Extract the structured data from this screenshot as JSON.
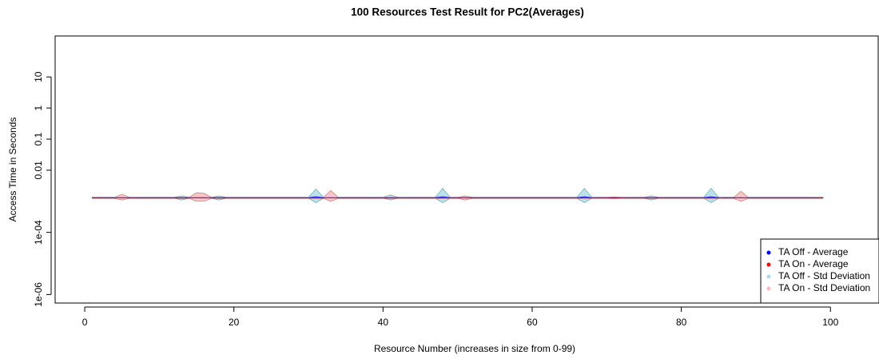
{
  "chart_data": {
    "type": "band-line",
    "title": "100 Resources Test Result for PC2(Averages)",
    "x_label": "Resource Number (increases in size from 0-99)",
    "y_label": "Access Time in Seconds",
    "log_y": true,
    "legend_position": "bottomright",
    "xlim": [
      -3.97,
      106.4
    ],
    "xticks": [
      0,
      20,
      40,
      60,
      80,
      100
    ],
    "ylim": [
      5.33e-07,
      208
    ],
    "yticks": [
      10,
      1,
      0.1,
      0.01,
      {
        "value": 0.0001,
        "label": "1e-04"
      },
      {
        "value": 1e-06,
        "label": "1e-06"
      }
    ],
    "x": [
      1,
      2,
      3,
      4,
      5,
      6,
      7,
      8,
      9,
      10,
      11,
      12,
      13,
      14,
      15,
      16,
      17,
      18,
      19,
      20,
      21,
      22,
      23,
      24,
      25,
      26,
      27,
      28,
      29,
      30,
      31,
      32,
      33,
      34,
      35,
      36,
      37,
      38,
      39,
      40,
      41,
      42,
      43,
      44,
      45,
      46,
      47,
      48,
      49,
      50,
      51,
      52,
      53,
      54,
      55,
      56,
      57,
      58,
      59,
      60,
      61,
      62,
      63,
      64,
      65,
      66,
      67,
      68,
      69,
      70,
      71,
      72,
      73,
      74,
      75,
      76,
      77,
      78,
      79,
      80,
      81,
      82,
      83,
      84,
      85,
      86,
      87,
      88,
      89,
      90,
      91,
      92,
      93,
      94,
      95,
      96,
      97,
      98,
      99
    ],
    "bands": [
      {
        "name": "TA Off - Std Deviation",
        "color": "#add8e6",
        "stroke": "#5f9ea0",
        "upper": [
          0.00135,
          0.00135,
          0.00135,
          0.00135,
          0.00135,
          0.00135,
          0.00135,
          0.00135,
          0.00135,
          0.00135,
          0.00135,
          0.00135,
          0.0015,
          0.00135,
          0.00135,
          0.00135,
          0.00135,
          0.0015,
          0.00135,
          0.00135,
          0.00135,
          0.00135,
          0.00135,
          0.00135,
          0.00135,
          0.00135,
          0.00135,
          0.00135,
          0.00135,
          0.00135,
          0.0025,
          0.00135,
          0.00135,
          0.00135,
          0.00135,
          0.00135,
          0.00135,
          0.00135,
          0.00135,
          0.00135,
          0.0016,
          0.00135,
          0.00135,
          0.00135,
          0.00135,
          0.00135,
          0.00135,
          0.0026,
          0.00135,
          0.00135,
          0.00135,
          0.00135,
          0.00135,
          0.00135,
          0.00135,
          0.00135,
          0.00135,
          0.00135,
          0.00135,
          0.00135,
          0.00135,
          0.00135,
          0.00135,
          0.00135,
          0.00135,
          0.00135,
          0.0026,
          0.00135,
          0.00135,
          0.00135,
          0.00135,
          0.00135,
          0.00135,
          0.00135,
          0.00135,
          0.0015,
          0.00135,
          0.00135,
          0.00135,
          0.00135,
          0.00135,
          0.00135,
          0.00135,
          0.0026,
          0.00135,
          0.00135,
          0.00135,
          0.00135,
          0.00135,
          0.00135,
          0.00135,
          0.00135,
          0.00135,
          0.00135,
          0.00135,
          0.00135,
          0.00135,
          0.00135,
          0.00135
        ],
        "lower": [
          0.00125,
          0.00125,
          0.00125,
          0.00125,
          0.00125,
          0.00125,
          0.00125,
          0.00125,
          0.00125,
          0.00125,
          0.00125,
          0.00125,
          0.0011,
          0.00125,
          0.00125,
          0.00125,
          0.00125,
          0.0011,
          0.00125,
          0.00125,
          0.00125,
          0.00125,
          0.00125,
          0.00125,
          0.00125,
          0.00125,
          0.00125,
          0.00125,
          0.00125,
          0.00125,
          0.0009,
          0.00125,
          0.00125,
          0.00125,
          0.00125,
          0.00125,
          0.00125,
          0.00125,
          0.00125,
          0.00125,
          0.0011,
          0.00125,
          0.00125,
          0.00125,
          0.00125,
          0.00125,
          0.00125,
          0.0009,
          0.00125,
          0.00125,
          0.00125,
          0.00125,
          0.00125,
          0.00125,
          0.00125,
          0.00125,
          0.00125,
          0.00125,
          0.00125,
          0.00125,
          0.00125,
          0.00125,
          0.00125,
          0.00125,
          0.00125,
          0.00125,
          0.0009,
          0.00125,
          0.00125,
          0.00125,
          0.00125,
          0.00125,
          0.00125,
          0.00125,
          0.00125,
          0.0011,
          0.00125,
          0.00125,
          0.00125,
          0.00125,
          0.00125,
          0.00125,
          0.00125,
          0.0009,
          0.00125,
          0.00125,
          0.00125,
          0.00125,
          0.00125,
          0.00125,
          0.00125,
          0.00125,
          0.00125,
          0.00125,
          0.00125,
          0.00125,
          0.00125,
          0.00125,
          0.00125
        ]
      },
      {
        "name": "TA On - Std Deviation",
        "color": "#ffb6c1",
        "stroke": "#cd5c5c",
        "upper": [
          0.00133,
          0.00133,
          0.00133,
          0.00133,
          0.0017,
          0.00133,
          0.00133,
          0.00133,
          0.00133,
          0.00133,
          0.00133,
          0.00133,
          0.00133,
          0.00133,
          0.0019,
          0.0018,
          0.00133,
          0.00133,
          0.00133,
          0.00133,
          0.00133,
          0.00133,
          0.00133,
          0.00133,
          0.00133,
          0.00133,
          0.00133,
          0.00133,
          0.00133,
          0.00133,
          0.00133,
          0.00133,
          0.0022,
          0.00133,
          0.00133,
          0.00133,
          0.00133,
          0.00133,
          0.00133,
          0.00133,
          0.00133,
          0.00133,
          0.00133,
          0.00133,
          0.00133,
          0.00133,
          0.00133,
          0.00133,
          0.00133,
          0.00133,
          0.0015,
          0.00133,
          0.00133,
          0.00133,
          0.00133,
          0.00133,
          0.00133,
          0.00133,
          0.00133,
          0.00133,
          0.00133,
          0.00133,
          0.00133,
          0.00133,
          0.00133,
          0.00133,
          0.00133,
          0.00133,
          0.00133,
          0.00133,
          0.0014,
          0.00133,
          0.00133,
          0.00133,
          0.00133,
          0.00133,
          0.00133,
          0.00133,
          0.00133,
          0.00133,
          0.00133,
          0.00133,
          0.00133,
          0.00133,
          0.00133,
          0.00133,
          0.00133,
          0.0021,
          0.00133,
          0.00133,
          0.00133,
          0.00133,
          0.00133,
          0.00133,
          0.00133,
          0.00133,
          0.00133,
          0.00133,
          0.00133
        ],
        "lower": [
          0.00123,
          0.00123,
          0.00123,
          0.00123,
          0.0011,
          0.00123,
          0.00123,
          0.00123,
          0.00123,
          0.00123,
          0.00123,
          0.00123,
          0.00123,
          0.00123,
          0.001,
          0.001,
          0.00123,
          0.00123,
          0.00123,
          0.00123,
          0.00123,
          0.00123,
          0.00123,
          0.00123,
          0.00123,
          0.00123,
          0.00123,
          0.00123,
          0.00123,
          0.00123,
          0.00123,
          0.00123,
          0.001,
          0.00123,
          0.00123,
          0.00123,
          0.00123,
          0.00123,
          0.00123,
          0.00123,
          0.00123,
          0.00123,
          0.00123,
          0.00123,
          0.00123,
          0.00123,
          0.00123,
          0.00123,
          0.00123,
          0.00123,
          0.0011,
          0.00123,
          0.00123,
          0.00123,
          0.00123,
          0.00123,
          0.00123,
          0.00123,
          0.00123,
          0.00123,
          0.00123,
          0.00123,
          0.00123,
          0.00123,
          0.00123,
          0.00123,
          0.00123,
          0.00123,
          0.00123,
          0.00123,
          0.0012,
          0.00123,
          0.00123,
          0.00123,
          0.00123,
          0.00123,
          0.00123,
          0.00123,
          0.00123,
          0.00123,
          0.00123,
          0.00123,
          0.00123,
          0.00123,
          0.00123,
          0.00123,
          0.00123,
          0.001,
          0.00123,
          0.00123,
          0.00123,
          0.00123,
          0.00123,
          0.00123,
          0.00123,
          0.00123,
          0.00123,
          0.00123,
          0.00123
        ]
      }
    ],
    "series": [
      {
        "name": "TA Off - Average",
        "color": "#0000ff",
        "values": [
          0.0013,
          0.0013,
          0.0013,
          0.0013,
          0.0013,
          0.0013,
          0.0013,
          0.0013,
          0.0013,
          0.0013,
          0.0013,
          0.0013,
          0.0013,
          0.0013,
          0.0013,
          0.0013,
          0.0013,
          0.0013,
          0.0013,
          0.0013,
          0.0013,
          0.0013,
          0.0013,
          0.0013,
          0.0013,
          0.0013,
          0.0013,
          0.0013,
          0.0013,
          0.0013,
          0.0014,
          0.0013,
          0.0013,
          0.0013,
          0.0013,
          0.0013,
          0.0013,
          0.0013,
          0.0013,
          0.0013,
          0.0013,
          0.0013,
          0.0013,
          0.0013,
          0.0013,
          0.0013,
          0.0013,
          0.0014,
          0.0013,
          0.0013,
          0.0013,
          0.0013,
          0.0013,
          0.0013,
          0.0013,
          0.0013,
          0.0013,
          0.0013,
          0.0013,
          0.0013,
          0.0013,
          0.0013,
          0.0013,
          0.0013,
          0.0013,
          0.0013,
          0.0014,
          0.0013,
          0.0013,
          0.0013,
          0.0013,
          0.0013,
          0.0013,
          0.0013,
          0.0013,
          0.0013,
          0.0013,
          0.0013,
          0.0013,
          0.0013,
          0.0013,
          0.0013,
          0.0013,
          0.0014,
          0.0013,
          0.0013,
          0.0013,
          0.0013,
          0.0013,
          0.0013,
          0.0013,
          0.0013,
          0.0013,
          0.0013,
          0.0013,
          0.0013,
          0.0013,
          0.0013,
          0.0013
        ]
      },
      {
        "name": "TA On - Average",
        "color": "#ff0000",
        "values": [
          0.00128,
          0.00128,
          0.00128,
          0.00128,
          0.0013,
          0.00128,
          0.00128,
          0.00128,
          0.00128,
          0.00128,
          0.00128,
          0.00128,
          0.00128,
          0.00128,
          0.0013,
          0.0013,
          0.00128,
          0.00128,
          0.00128,
          0.00128,
          0.00128,
          0.00128,
          0.00128,
          0.00128,
          0.00128,
          0.00128,
          0.00128,
          0.00128,
          0.00128,
          0.00128,
          0.00128,
          0.00128,
          0.0013,
          0.00128,
          0.00128,
          0.00128,
          0.00128,
          0.00128,
          0.00128,
          0.00128,
          0.00128,
          0.00128,
          0.00128,
          0.00128,
          0.00128,
          0.00128,
          0.00128,
          0.00128,
          0.00128,
          0.00128,
          0.00128,
          0.00128,
          0.00128,
          0.00128,
          0.00128,
          0.00128,
          0.00128,
          0.00128,
          0.00128,
          0.00128,
          0.00128,
          0.00128,
          0.00128,
          0.00128,
          0.00128,
          0.00128,
          0.00128,
          0.00128,
          0.00128,
          0.00128,
          0.00128,
          0.00128,
          0.00128,
          0.00128,
          0.00128,
          0.00128,
          0.00128,
          0.00128,
          0.00128,
          0.00128,
          0.00128,
          0.00128,
          0.00128,
          0.00128,
          0.00128,
          0.00128,
          0.00128,
          0.0013,
          0.00128,
          0.00128,
          0.00128,
          0.00128,
          0.00128,
          0.00128,
          0.00128,
          0.00128,
          0.00128,
          0.00128,
          0.00128
        ]
      }
    ]
  }
}
